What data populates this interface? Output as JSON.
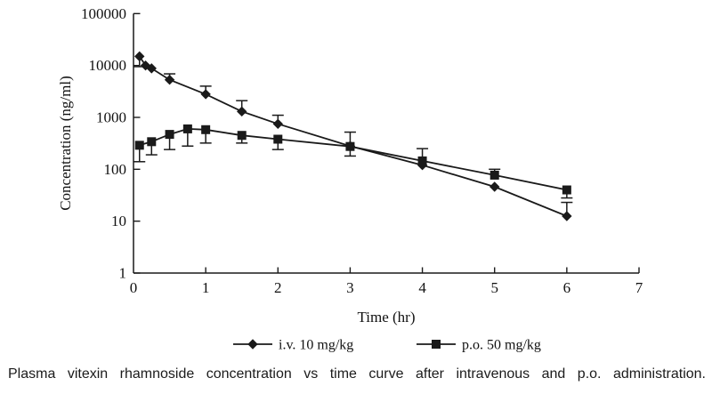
{
  "chart_data": {
    "type": "line",
    "title": "",
    "xlabel": "Time (hr)",
    "ylabel": "Concentration (ng/ml)",
    "x_ticks": [
      0,
      1,
      2,
      3,
      4,
      5,
      6,
      7
    ],
    "xlim": [
      0,
      7
    ],
    "y_scale": "log",
    "y_ticks": [
      1,
      10,
      100,
      1000,
      10000,
      100000
    ],
    "ylim": [
      1,
      100000
    ],
    "grid": false,
    "legend_position": "bottom",
    "line_color": "#1a1a1a",
    "series": [
      {
        "name": "i.v. 10 mg/kg",
        "marker": "diamond",
        "points": [
          {
            "t": 0.083,
            "c": 15000,
            "lo": 9500,
            "hi": null
          },
          {
            "t": 0.167,
            "c": 10000,
            "lo": null,
            "hi": null
          },
          {
            "t": 0.25,
            "c": 8800,
            "lo": null,
            "hi": null
          },
          {
            "t": 0.5,
            "c": 5300,
            "lo": null,
            "hi": 6900
          },
          {
            "t": 1,
            "c": 2800,
            "lo": null,
            "hi": 4000
          },
          {
            "t": 1.5,
            "c": 1300,
            "lo": null,
            "hi": 2100
          },
          {
            "t": 2,
            "c": 750,
            "lo": null,
            "hi": 1100
          },
          {
            "t": 3,
            "c": 280,
            "lo": 180,
            "hi": 520
          },
          {
            "t": 4,
            "c": 120,
            "lo": null,
            "hi": null
          },
          {
            "t": 5,
            "c": 46,
            "lo": null,
            "hi": null
          },
          {
            "t": 6,
            "c": 12.5,
            "lo": null,
            "hi": 23
          }
        ]
      },
      {
        "name": "p.o. 50 mg/kg",
        "marker": "square",
        "points": [
          {
            "t": 0.083,
            "c": 290,
            "lo": 140,
            "hi": null
          },
          {
            "t": 0.25,
            "c": 340,
            "lo": 190,
            "hi": null
          },
          {
            "t": 0.5,
            "c": 470,
            "lo": 240,
            "hi": null
          },
          {
            "t": 0.75,
            "c": 600,
            "lo": 280,
            "hi": null
          },
          {
            "t": 1,
            "c": 580,
            "lo": 320,
            "hi": null
          },
          {
            "t": 1.5,
            "c": 450,
            "lo": 320,
            "hi": null
          },
          {
            "t": 2,
            "c": 380,
            "lo": 240,
            "hi": null
          },
          {
            "t": 3,
            "c": 275,
            "lo": null,
            "hi": null
          },
          {
            "t": 4,
            "c": 145,
            "lo": null,
            "hi": 250
          },
          {
            "t": 5,
            "c": 77,
            "lo": null,
            "hi": 100
          },
          {
            "t": 6,
            "c": 40,
            "lo": 28,
            "hi": null
          }
        ]
      }
    ]
  },
  "caption": {
    "text": "Plasma vitexin rhamnoside concentration vs time curve after intravenous and p.o. administration."
  }
}
